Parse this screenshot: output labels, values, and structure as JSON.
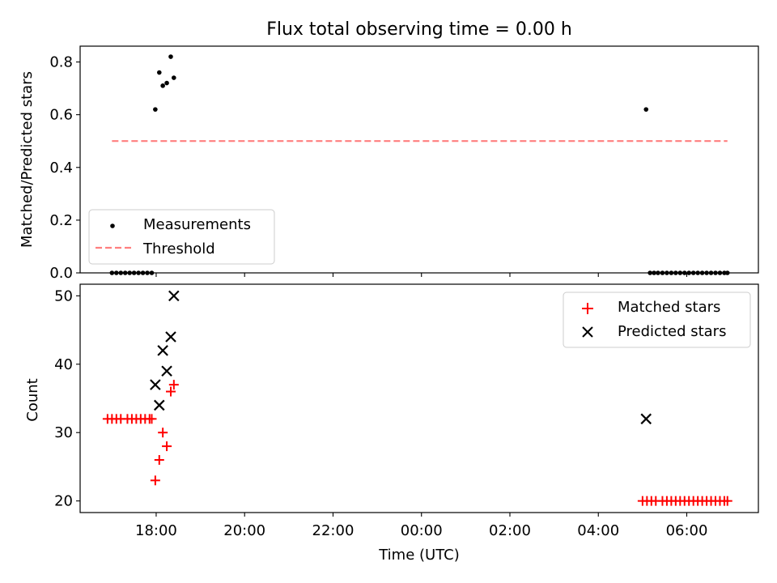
{
  "chart_data": [
    {
      "type": "scatter",
      "title": "Flux total observing time = 0.00 h",
      "xlabel": "",
      "ylabel": "Matched/Predicted stars",
      "ylim": [
        0,
        0.86
      ],
      "yticks": [
        0.0,
        0.2,
        0.4,
        0.6,
        0.8
      ],
      "ytick_labels": [
        "0.0",
        "0.2",
        "0.4",
        "0.6",
        "0.8"
      ],
      "xlim": [
        16.28,
        31.62
      ],
      "xticks": [
        18,
        20,
        22,
        24,
        26,
        28,
        30
      ],
      "grid": false,
      "legend_position": "lower-left",
      "series": [
        {
          "name": "Measurements",
          "kind": "points",
          "color": "#000000",
          "x": [
            17.0,
            17.1,
            17.2,
            17.3,
            17.4,
            17.5,
            17.6,
            17.7,
            17.8,
            17.9,
            17.98,
            18.07,
            18.15,
            18.24,
            18.33,
            18.4,
            29.08,
            29.17,
            29.26,
            29.35,
            29.45,
            29.55,
            29.65,
            29.75,
            29.85,
            29.95,
            30.05,
            30.15,
            30.25,
            30.35,
            30.45,
            30.55,
            30.65,
            30.75,
            30.85,
            30.92
          ],
          "y": [
            0,
            0,
            0,
            0,
            0,
            0,
            0,
            0,
            0,
            0,
            0.62,
            0.76,
            0.71,
            0.72,
            0.82,
            0.74,
            0.62,
            0,
            0,
            0,
            0,
            0,
            0,
            0,
            0,
            0,
            0,
            0,
            0,
            0,
            0,
            0,
            0,
            0,
            0,
            0
          ]
        },
        {
          "name": "Threshold",
          "kind": "dashed-line",
          "color": "#ff7f7f",
          "x": [
            17.0,
            30.92
          ],
          "y": [
            0.5,
            0.5
          ]
        }
      ]
    },
    {
      "type": "scatter",
      "title": "",
      "xlabel": "Time (UTC)",
      "ylabel": "Count",
      "ylim": [
        18.3,
        51.7
      ],
      "yticks": [
        20,
        30,
        40,
        50
      ],
      "ytick_labels": [
        "20",
        "30",
        "40",
        "50"
      ],
      "xlim": [
        16.28,
        31.62
      ],
      "xticks": [
        18,
        20,
        22,
        24,
        26,
        28,
        30
      ],
      "xtick_labels": [
        "18:00",
        "20:00",
        "22:00",
        "00:00",
        "02:00",
        "04:00",
        "06:00"
      ],
      "grid": false,
      "legend_position": "upper-right",
      "series": [
        {
          "name": "Matched stars",
          "marker": "plus",
          "color": "#ff0000",
          "x": [
            16.9,
            17.0,
            17.1,
            17.2,
            17.35,
            17.45,
            17.55,
            17.65,
            17.75,
            17.85,
            17.9,
            17.98,
            18.07,
            18.15,
            18.24,
            18.33,
            18.4,
            29.0,
            29.1,
            29.2,
            29.3,
            29.45,
            29.55,
            29.65,
            29.75,
            29.85,
            29.95,
            30.05,
            30.15,
            30.25,
            30.35,
            30.45,
            30.55,
            30.65,
            30.75,
            30.85,
            30.92
          ],
          "y": [
            32,
            32,
            32,
            32,
            32,
            32,
            32,
            32,
            32,
            32,
            32,
            23,
            26,
            30,
            28,
            36,
            37,
            20,
            20,
            20,
            20,
            20,
            20,
            20,
            20,
            20,
            20,
            20,
            20,
            20,
            20,
            20,
            20,
            20,
            20,
            20,
            20
          ]
        },
        {
          "name": "Predicted stars",
          "marker": "x",
          "color": "#000000",
          "x": [
            17.98,
            18.07,
            18.15,
            18.24,
            18.33,
            18.4,
            29.08
          ],
          "y": [
            37,
            34,
            42,
            39,
            44,
            50,
            32
          ]
        }
      ]
    }
  ]
}
